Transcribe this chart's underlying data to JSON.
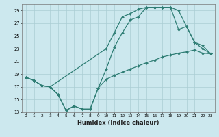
{
  "xlabel": "Humidex (Indice chaleur)",
  "background_color": "#cce8ee",
  "line_color": "#2e7d74",
  "grid_color": "#aacdd4",
  "xlim": [
    -0.5,
    23.5
  ],
  "ylim": [
    13,
    30
  ],
  "xticks": [
    0,
    1,
    2,
    3,
    4,
    5,
    6,
    7,
    8,
    9,
    10,
    11,
    12,
    13,
    14,
    15,
    16,
    17,
    18,
    19,
    20,
    21,
    22,
    23
  ],
  "yticks": [
    13,
    15,
    17,
    19,
    21,
    23,
    25,
    27,
    29
  ],
  "curve1_x": [
    0,
    1,
    2,
    3,
    4,
    5,
    6,
    7,
    8,
    9,
    10,
    11,
    12,
    13,
    14,
    15,
    16,
    17,
    18,
    19,
    20,
    21,
    22,
    23
  ],
  "curve1_y": [
    18.5,
    18.0,
    17.2,
    17.0,
    15.8,
    13.3,
    14.0,
    13.5,
    13.5,
    16.8,
    19.8,
    23.2,
    25.5,
    27.5,
    28.0,
    29.5,
    29.5,
    29.5,
    29.5,
    29.0,
    26.5,
    24.0,
    23.0,
    22.2
  ],
  "curve2_x": [
    0,
    1,
    2,
    3,
    10,
    11,
    12,
    13,
    14,
    15,
    16,
    17,
    18,
    19,
    20,
    21,
    22,
    23
  ],
  "curve2_y": [
    18.5,
    18.0,
    17.2,
    17.0,
    23.0,
    25.5,
    28.0,
    28.5,
    29.2,
    29.5,
    29.5,
    29.5,
    29.5,
    26.0,
    26.5,
    24.0,
    23.5,
    22.2
  ],
  "curve3_x": [
    0,
    1,
    2,
    3,
    4,
    5,
    6,
    7,
    8,
    9,
    10,
    11,
    12,
    13,
    14,
    15,
    16,
    17,
    18,
    19,
    20,
    21,
    22,
    23
  ],
  "curve3_y": [
    18.5,
    18.0,
    17.2,
    17.0,
    15.8,
    13.3,
    14.0,
    13.5,
    13.5,
    16.8,
    18.2,
    18.8,
    19.3,
    19.8,
    20.3,
    20.8,
    21.2,
    21.7,
    22.0,
    22.3,
    22.5,
    22.8,
    22.3,
    22.2
  ]
}
